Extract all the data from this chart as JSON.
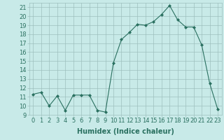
{
  "x": [
    0,
    1,
    2,
    3,
    4,
    5,
    6,
    7,
    8,
    9,
    10,
    11,
    12,
    13,
    14,
    15,
    16,
    17,
    18,
    19,
    20,
    21,
    22,
    23
  ],
  "y": [
    11.3,
    11.5,
    10.0,
    11.1,
    9.5,
    11.2,
    11.2,
    11.2,
    9.5,
    9.3,
    14.8,
    17.4,
    18.2,
    19.1,
    19.0,
    19.4,
    20.2,
    21.2,
    19.6,
    18.8,
    18.8,
    16.8,
    12.5,
    9.6
  ],
  "line_color": "#2a7060",
  "marker": "D",
  "marker_size": 2,
  "bg_color": "#c8eae8",
  "grid_color": "#9dbfbd",
  "xlabel": "Humidex (Indice chaleur)",
  "xlim": [
    -0.5,
    23.5
  ],
  "ylim": [
    9,
    21.5
  ],
  "yticks": [
    9,
    10,
    11,
    12,
    13,
    14,
    15,
    16,
    17,
    18,
    19,
    20,
    21
  ],
  "xticks": [
    0,
    1,
    2,
    3,
    4,
    5,
    6,
    7,
    8,
    9,
    10,
    11,
    12,
    13,
    14,
    15,
    16,
    17,
    18,
    19,
    20,
    21,
    22,
    23
  ],
  "xlabel_fontsize": 7,
  "tick_fontsize": 6
}
